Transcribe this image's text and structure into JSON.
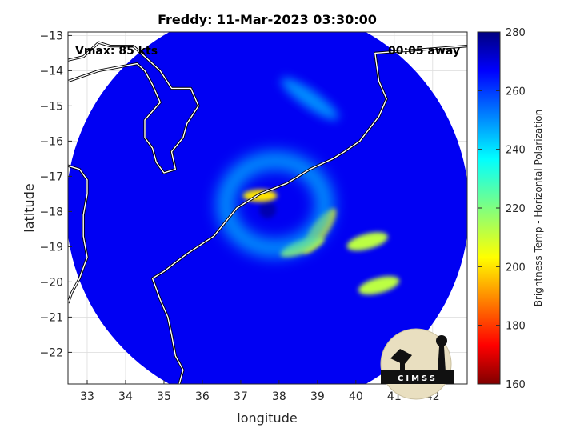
{
  "chart_data": {
    "type": "heatmap",
    "title": "Freddy: 11-Mar-2023 03:30:00",
    "xlabel": "longitude",
    "ylabel": "latitude",
    "xlim": [
      32.5,
      42.9
    ],
    "ylim": [
      -22.9,
      -12.9
    ],
    "xticks": [
      33,
      34,
      35,
      36,
      37,
      38,
      39,
      40,
      41,
      42
    ],
    "yticks": [
      -13,
      -14,
      -15,
      -16,
      -17,
      -18,
      -19,
      -20,
      -21,
      -22
    ],
    "grid": true,
    "colorbar": {
      "label": "Brightness Temp - Horizontal Polarization",
      "range": [
        160,
        280
      ],
      "ticks": [
        160,
        180,
        200,
        220,
        240,
        260,
        280
      ],
      "colormap": "jet"
    },
    "annotations": {
      "vmax": "Vmax: 85 kts",
      "time_offset": "00:05 away"
    },
    "swath": {
      "center_lon": 37.7,
      "center_lat": -17.9,
      "radius_deg": 5.25,
      "background_value": 268
    },
    "features": [
      {
        "name": "eye",
        "lon": 37.7,
        "lat": -17.95,
        "value": 275
      },
      {
        "name": "eyewall-north",
        "lon": 37.5,
        "lat": -17.55,
        "value": 200
      },
      {
        "name": "rainband-east",
        "lon": 39.05,
        "lat": -18.55,
        "value": 198
      },
      {
        "name": "rainband-south",
        "lon": 38.6,
        "lat": -19.0,
        "value": 208
      },
      {
        "name": "band-40-5",
        "lon": 40.3,
        "lat": -18.85,
        "value": 212
      },
      {
        "name": "band-40-6",
        "lon": 40.6,
        "lat": -20.1,
        "value": 212
      },
      {
        "name": "inner-ring",
        "lon": 37.9,
        "lat": -17.8,
        "value": 245
      },
      {
        "name": "north-band",
        "lon": 38.8,
        "lat": -14.8,
        "value": 250
      }
    ],
    "coastline_lonlat": [
      [
        32.5,
        -13.7
      ],
      [
        32.9,
        -13.6
      ],
      [
        33.3,
        -13.2
      ],
      [
        33.6,
        -13.3
      ],
      [
        34.2,
        -13.3
      ],
      [
        34.6,
        -13.7
      ],
      [
        34.9,
        -14.0
      ],
      [
        35.2,
        -14.5
      ],
      [
        35.7,
        -14.5
      ],
      [
        35.9,
        -15.0
      ],
      [
        35.6,
        -15.5
      ],
      [
        35.5,
        -15.9
      ],
      [
        35.2,
        -16.3
      ],
      [
        35.3,
        -16.8
      ],
      [
        35.0,
        -16.9
      ],
      [
        34.8,
        -16.6
      ],
      [
        34.7,
        -16.2
      ],
      [
        34.5,
        -15.9
      ],
      [
        34.5,
        -15.4
      ],
      [
        34.9,
        -14.9
      ],
      [
        34.7,
        -14.4
      ],
      [
        34.5,
        -14.0
      ],
      [
        34.3,
        -13.8
      ],
      [
        33.8,
        -13.9
      ],
      [
        33.3,
        -14.0
      ],
      [
        32.5,
        -14.3
      ]
    ],
    "mozambique_coast_lonlat": [
      [
        42.9,
        -13.3
      ],
      [
        40.5,
        -13.5
      ],
      [
        40.6,
        -14.3
      ],
      [
        40.8,
        -14.8
      ],
      [
        40.6,
        -15.3
      ],
      [
        40.1,
        -16.0
      ],
      [
        39.7,
        -16.3
      ],
      [
        39.4,
        -16.5
      ],
      [
        38.8,
        -16.8
      ],
      [
        38.2,
        -17.2
      ],
      [
        37.5,
        -17.5
      ],
      [
        36.9,
        -17.9
      ],
      [
        36.3,
        -18.7
      ],
      [
        35.6,
        -19.2
      ],
      [
        35.0,
        -19.7
      ],
      [
        34.7,
        -19.9
      ],
      [
        34.9,
        -20.5
      ],
      [
        35.1,
        -21.0
      ],
      [
        35.2,
        -21.5
      ],
      [
        35.3,
        -22.1
      ],
      [
        35.5,
        -22.5
      ],
      [
        35.4,
        -22.9
      ]
    ],
    "border_lonlat": [
      [
        32.5,
        -16.7
      ],
      [
        32.8,
        -16.8
      ],
      [
        33.0,
        -17.1
      ],
      [
        33.0,
        -17.5
      ],
      [
        32.9,
        -18.1
      ],
      [
        32.9,
        -18.7
      ],
      [
        33.0,
        -19.3
      ],
      [
        32.8,
        -19.9
      ],
      [
        32.6,
        -20.3
      ],
      [
        32.5,
        -20.6
      ]
    ]
  },
  "logo": {
    "text": "CIMSS"
  }
}
